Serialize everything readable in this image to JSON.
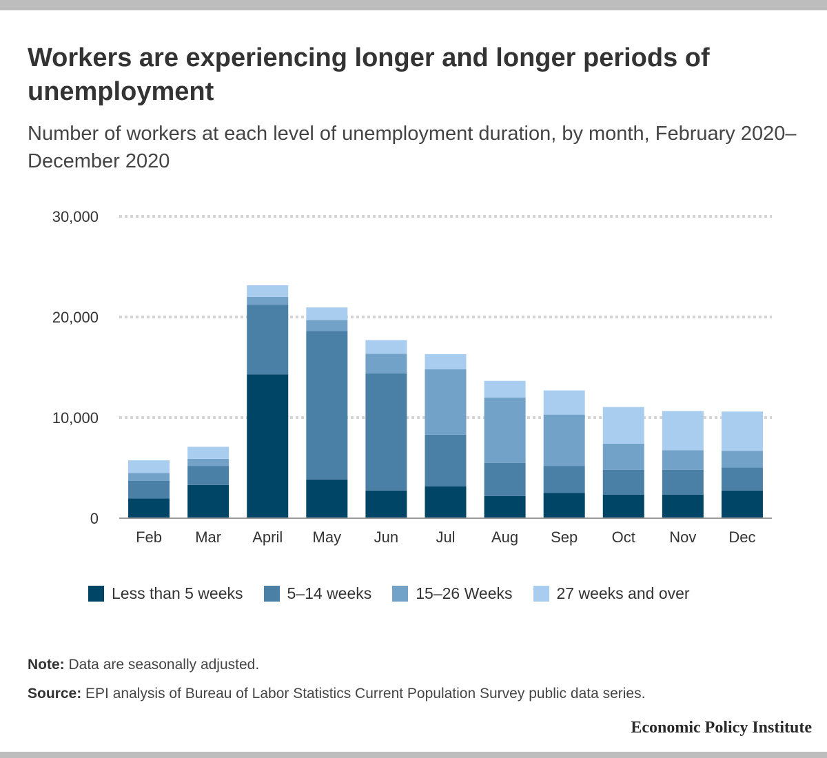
{
  "title": "Workers are experiencing longer and longer periods of unemployment",
  "subtitle": "Number of workers at each level of unemployment duration, by month, February 2020–December 2020",
  "note": {
    "label": "Note:",
    "text": " Data are seasonally adjusted."
  },
  "source": {
    "label": "Source:",
    "text": " EPI analysis of Bureau of Labor Statistics Current Population Survey public data series."
  },
  "brand": "Economic Policy Institute",
  "colors": {
    "lt5": "#004466",
    "w5_14": "#4a7fa6",
    "w15_26": "#72a2c7",
    "w27plus": "#a9cdef",
    "grid": "#d4d4d4",
    "axis": "#9a9a9a",
    "text": "#333333"
  },
  "chart_data": {
    "type": "bar",
    "stacked": true,
    "title": "Workers are experiencing longer and longer periods of unemployment",
    "subtitle": "Number of workers at each level of unemployment duration, by month, February 2020–December 2020",
    "xlabel": "",
    "ylabel": "",
    "ylim": [
      0,
      30000
    ],
    "yticks": [
      0,
      10000,
      20000,
      30000
    ],
    "ytick_labels": [
      "0",
      "10,000",
      "20,000",
      "30,000"
    ],
    "grid": "horizontal dotted",
    "legend_position": "bottom",
    "categories": [
      "Feb",
      "Mar",
      "April",
      "May",
      "Jun",
      "Jul",
      "Aug",
      "Sep",
      "Oct",
      "Nov",
      "Dec"
    ],
    "series": [
      {
        "name": "Less than 5 weeks",
        "color_key": "lt5",
        "values": [
          1950,
          3300,
          14300,
          3850,
          2750,
          3150,
          2200,
          2500,
          2350,
          2350,
          2750
        ]
      },
      {
        "name": "5–14 weeks",
        "color_key": "w5_14",
        "values": [
          1750,
          1900,
          6900,
          14750,
          11650,
          5150,
          3300,
          2700,
          2450,
          2450,
          2300
        ]
      },
      {
        "name": "15–26 Weeks",
        "color_key": "w15_26",
        "values": [
          800,
          700,
          800,
          1100,
          1950,
          6500,
          6500,
          5100,
          2600,
          1950,
          1650
        ]
      },
      {
        "name": "27 weeks and over",
        "color_key": "w27plus",
        "values": [
          1250,
          1200,
          1150,
          1250,
          1350,
          1500,
          1650,
          2400,
          3650,
          3900,
          3900
        ]
      }
    ]
  }
}
